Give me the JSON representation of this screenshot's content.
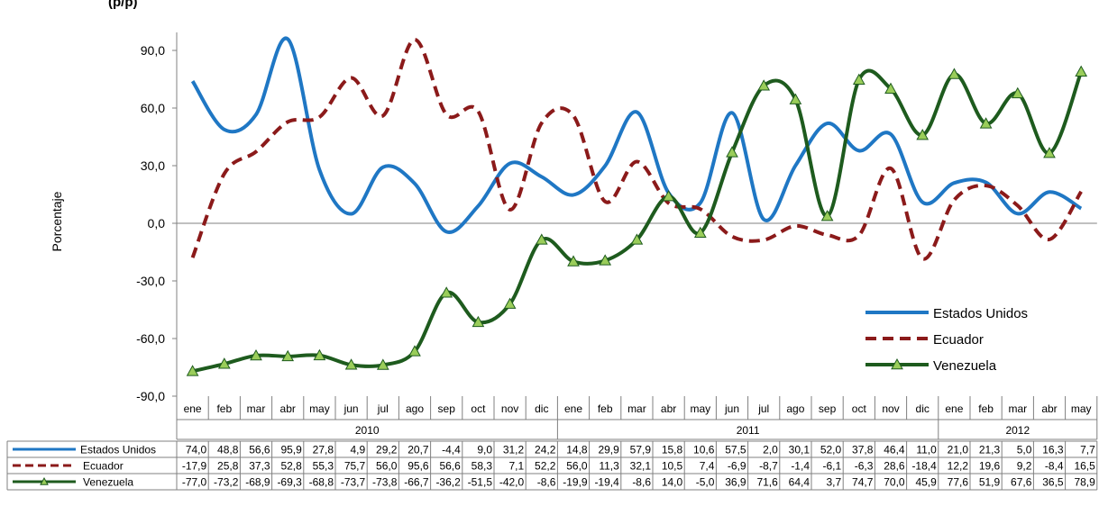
{
  "chart_data": {
    "type": "line",
    "title": "",
    "title_fragment": "(p/p)",
    "ylabel": "Porcentaje",
    "xlabel": "",
    "ylim": [
      -90,
      105
    ],
    "yticks": [
      "90,0",
      "60,0",
      "30,0",
      "0,0",
      "-30,0",
      "-60,0",
      "-90,0"
    ],
    "ytick_values": [
      90,
      60,
      30,
      0,
      -30,
      -60,
      -90
    ],
    "grid": false,
    "legend_position": "lower-right",
    "categories": [
      "ene",
      "feb",
      "mar",
      "abr",
      "may",
      "jun",
      "jul",
      "ago",
      "sep",
      "oct",
      "nov",
      "dic",
      "ene",
      "feb",
      "mar",
      "abr",
      "may",
      "jun",
      "jul",
      "ago",
      "sep",
      "oct",
      "nov",
      "dic",
      "ene",
      "feb",
      "mar",
      "abr",
      "may"
    ],
    "year_groups": [
      {
        "label": "2010",
        "count": 12
      },
      {
        "label": "2011",
        "count": 12
      },
      {
        "label": "2012",
        "count": 5
      }
    ],
    "series": [
      {
        "name": "Estados Unidos",
        "color": "#1f77c4",
        "style": "solid",
        "marker": "none",
        "values": [
          74.0,
          48.8,
          56.6,
          95.9,
          27.8,
          4.9,
          29.2,
          20.7,
          -4.4,
          9.0,
          31.2,
          24.2,
          14.8,
          29.9,
          57.9,
          15.8,
          10.6,
          57.5,
          2.0,
          30.1,
          52.0,
          37.8,
          46.4,
          11.0,
          21.0,
          21.3,
          5.0,
          16.3,
          7.7
        ],
        "labels": [
          "74,0",
          "48,8",
          "56,6",
          "95,9",
          "27,8",
          "4,9",
          "29,2",
          "20,7",
          "-4,4",
          "9,0",
          "31,2",
          "24,2",
          "14,8",
          "29,9",
          "57,9",
          "15,8",
          "10,6",
          "57,5",
          "2,0",
          "30,1",
          "52,0",
          "37,8",
          "46,4",
          "11,0",
          "21,0",
          "21,3",
          "5,0",
          "16,3",
          "7,7"
        ]
      },
      {
        "name": "Ecuador",
        "color": "#8b1a1a",
        "style": "dashed",
        "marker": "none",
        "values": [
          -17.9,
          25.8,
          37.3,
          52.8,
          55.3,
          75.7,
          56.0,
          95.6,
          56.6,
          58.3,
          7.1,
          52.2,
          56.0,
          11.3,
          32.1,
          10.5,
          7.4,
          -6.9,
          -8.7,
          -1.4,
          -6.1,
          -6.3,
          28.6,
          -18.4,
          12.2,
          19.6,
          9.2,
          -8.4,
          16.5
        ],
        "labels": [
          "-17,9",
          "25,8",
          "37,3",
          "52,8",
          "55,3",
          "75,7",
          "56,0",
          "95,6",
          "56,6",
          "58,3",
          "7,1",
          "52,2",
          "56,0",
          "11,3",
          "32,1",
          "10,5",
          "7,4",
          "-6,9",
          "-8,7",
          "-1,4",
          "-6,1",
          "-6,3",
          "28,6",
          "-18,4",
          "12,2",
          "19,6",
          "9,2",
          "-8,4",
          "16,5"
        ]
      },
      {
        "name": "Venezuela",
        "color": "#1e5b1e",
        "marker_fill": "#9acd5a",
        "style": "solid",
        "marker": "triangle",
        "values": [
          -77.0,
          -73.2,
          -68.9,
          -69.3,
          -68.8,
          -73.7,
          -73.8,
          -66.7,
          -36.2,
          -51.5,
          -42.0,
          -8.6,
          -19.9,
          -19.4,
          -8.6,
          14.0,
          -5.0,
          36.9,
          71.6,
          64.4,
          3.7,
          74.7,
          70.0,
          45.9,
          77.6,
          51.9,
          67.6,
          36.5,
          78.9
        ],
        "labels": [
          "-77,0",
          "-73,2",
          "-68,9",
          "-69,3",
          "-68,8",
          "-73,7",
          "-73,8",
          "-66,7",
          "-36,2",
          "-51,5",
          "-42,0",
          "-8,6",
          "-19,9",
          "-19,4",
          "-8,6",
          "14,0",
          "-5,0",
          "36,9",
          "71,6",
          "64,4",
          "3,7",
          "74,7",
          "70,0",
          "45,9",
          "77,6",
          "51,9",
          "67,6",
          "36,5",
          "78,9"
        ]
      }
    ]
  }
}
